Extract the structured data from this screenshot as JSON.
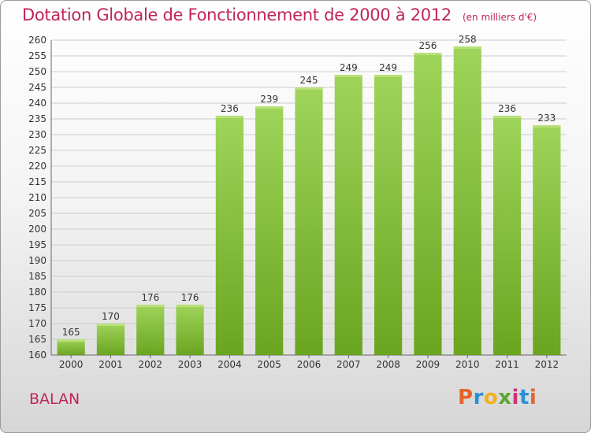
{
  "title": "Dotation Globale de Fonctionnement de 2000 à 2012",
  "unit_note": "(en milliers d'€)",
  "place": "BALAN",
  "logo": {
    "text": "Proxiti",
    "colors": [
      "#e8632b",
      "#2b8fd6",
      "#f2b01e",
      "#5aa832",
      "#d0307a",
      "#2b8fd6",
      "#e8632b"
    ]
  },
  "colors": {
    "title": "#c0245c",
    "bar_light": "#9fd45a",
    "bar_dark": "#6aa520",
    "grid": "#cccccc"
  },
  "chart_data": {
    "type": "bar",
    "title": "Dotation Globale de Fonctionnement de 2000 à 2012",
    "subtitle": "(en milliers d'€)",
    "xlabel": "",
    "ylabel": "",
    "categories": [
      "2000",
      "2001",
      "2002",
      "2003",
      "2004",
      "2005",
      "2006",
      "2007",
      "2008",
      "2009",
      "2010",
      "2011",
      "2012"
    ],
    "values": [
      165,
      170,
      176,
      176,
      236,
      239,
      245,
      249,
      249,
      256,
      258,
      236,
      233
    ],
    "ylim": [
      160,
      260
    ],
    "ytick_step": 5,
    "grid": true
  }
}
